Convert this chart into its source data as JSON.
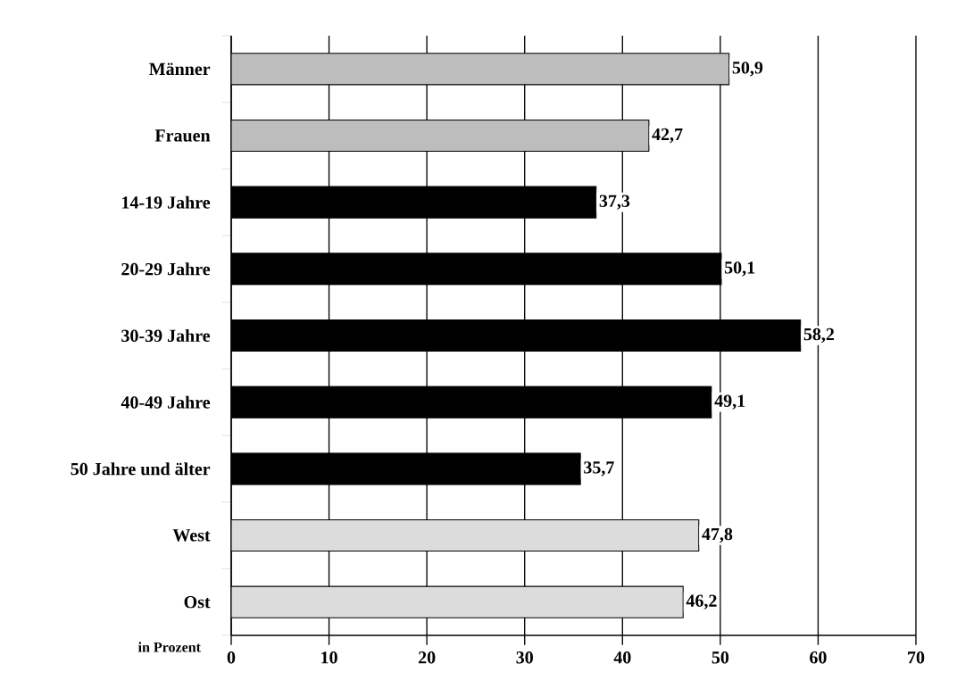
{
  "chart_data": {
    "type": "bar",
    "orientation": "horizontal",
    "xlabel": "in Prozent",
    "categories": [
      "Männer",
      "Frauen",
      "14-19 Jahre",
      "20-29 Jahre",
      "30-39 Jahre",
      "40-49 Jahre",
      "50 Jahre und älter",
      "West",
      "Ost"
    ],
    "values": [
      50.9,
      42.7,
      37.3,
      50.1,
      58.2,
      49.1,
      35.7,
      47.8,
      46.2
    ],
    "value_labels": [
      "50,9",
      "42,7",
      "37,3",
      "50,1",
      "58,2",
      "49,1",
      "35,7",
      "47,8",
      "46,2"
    ],
    "colors": [
      "#bdbdbd",
      "#bdbdbd",
      "#000000",
      "#000000",
      "#000000",
      "#000000",
      "#000000",
      "#dcdcdc",
      "#dcdcdc"
    ],
    "xlim": [
      0,
      70
    ],
    "xticks": [
      0,
      10,
      20,
      30,
      40,
      50,
      60,
      70
    ],
    "grid": "x"
  }
}
